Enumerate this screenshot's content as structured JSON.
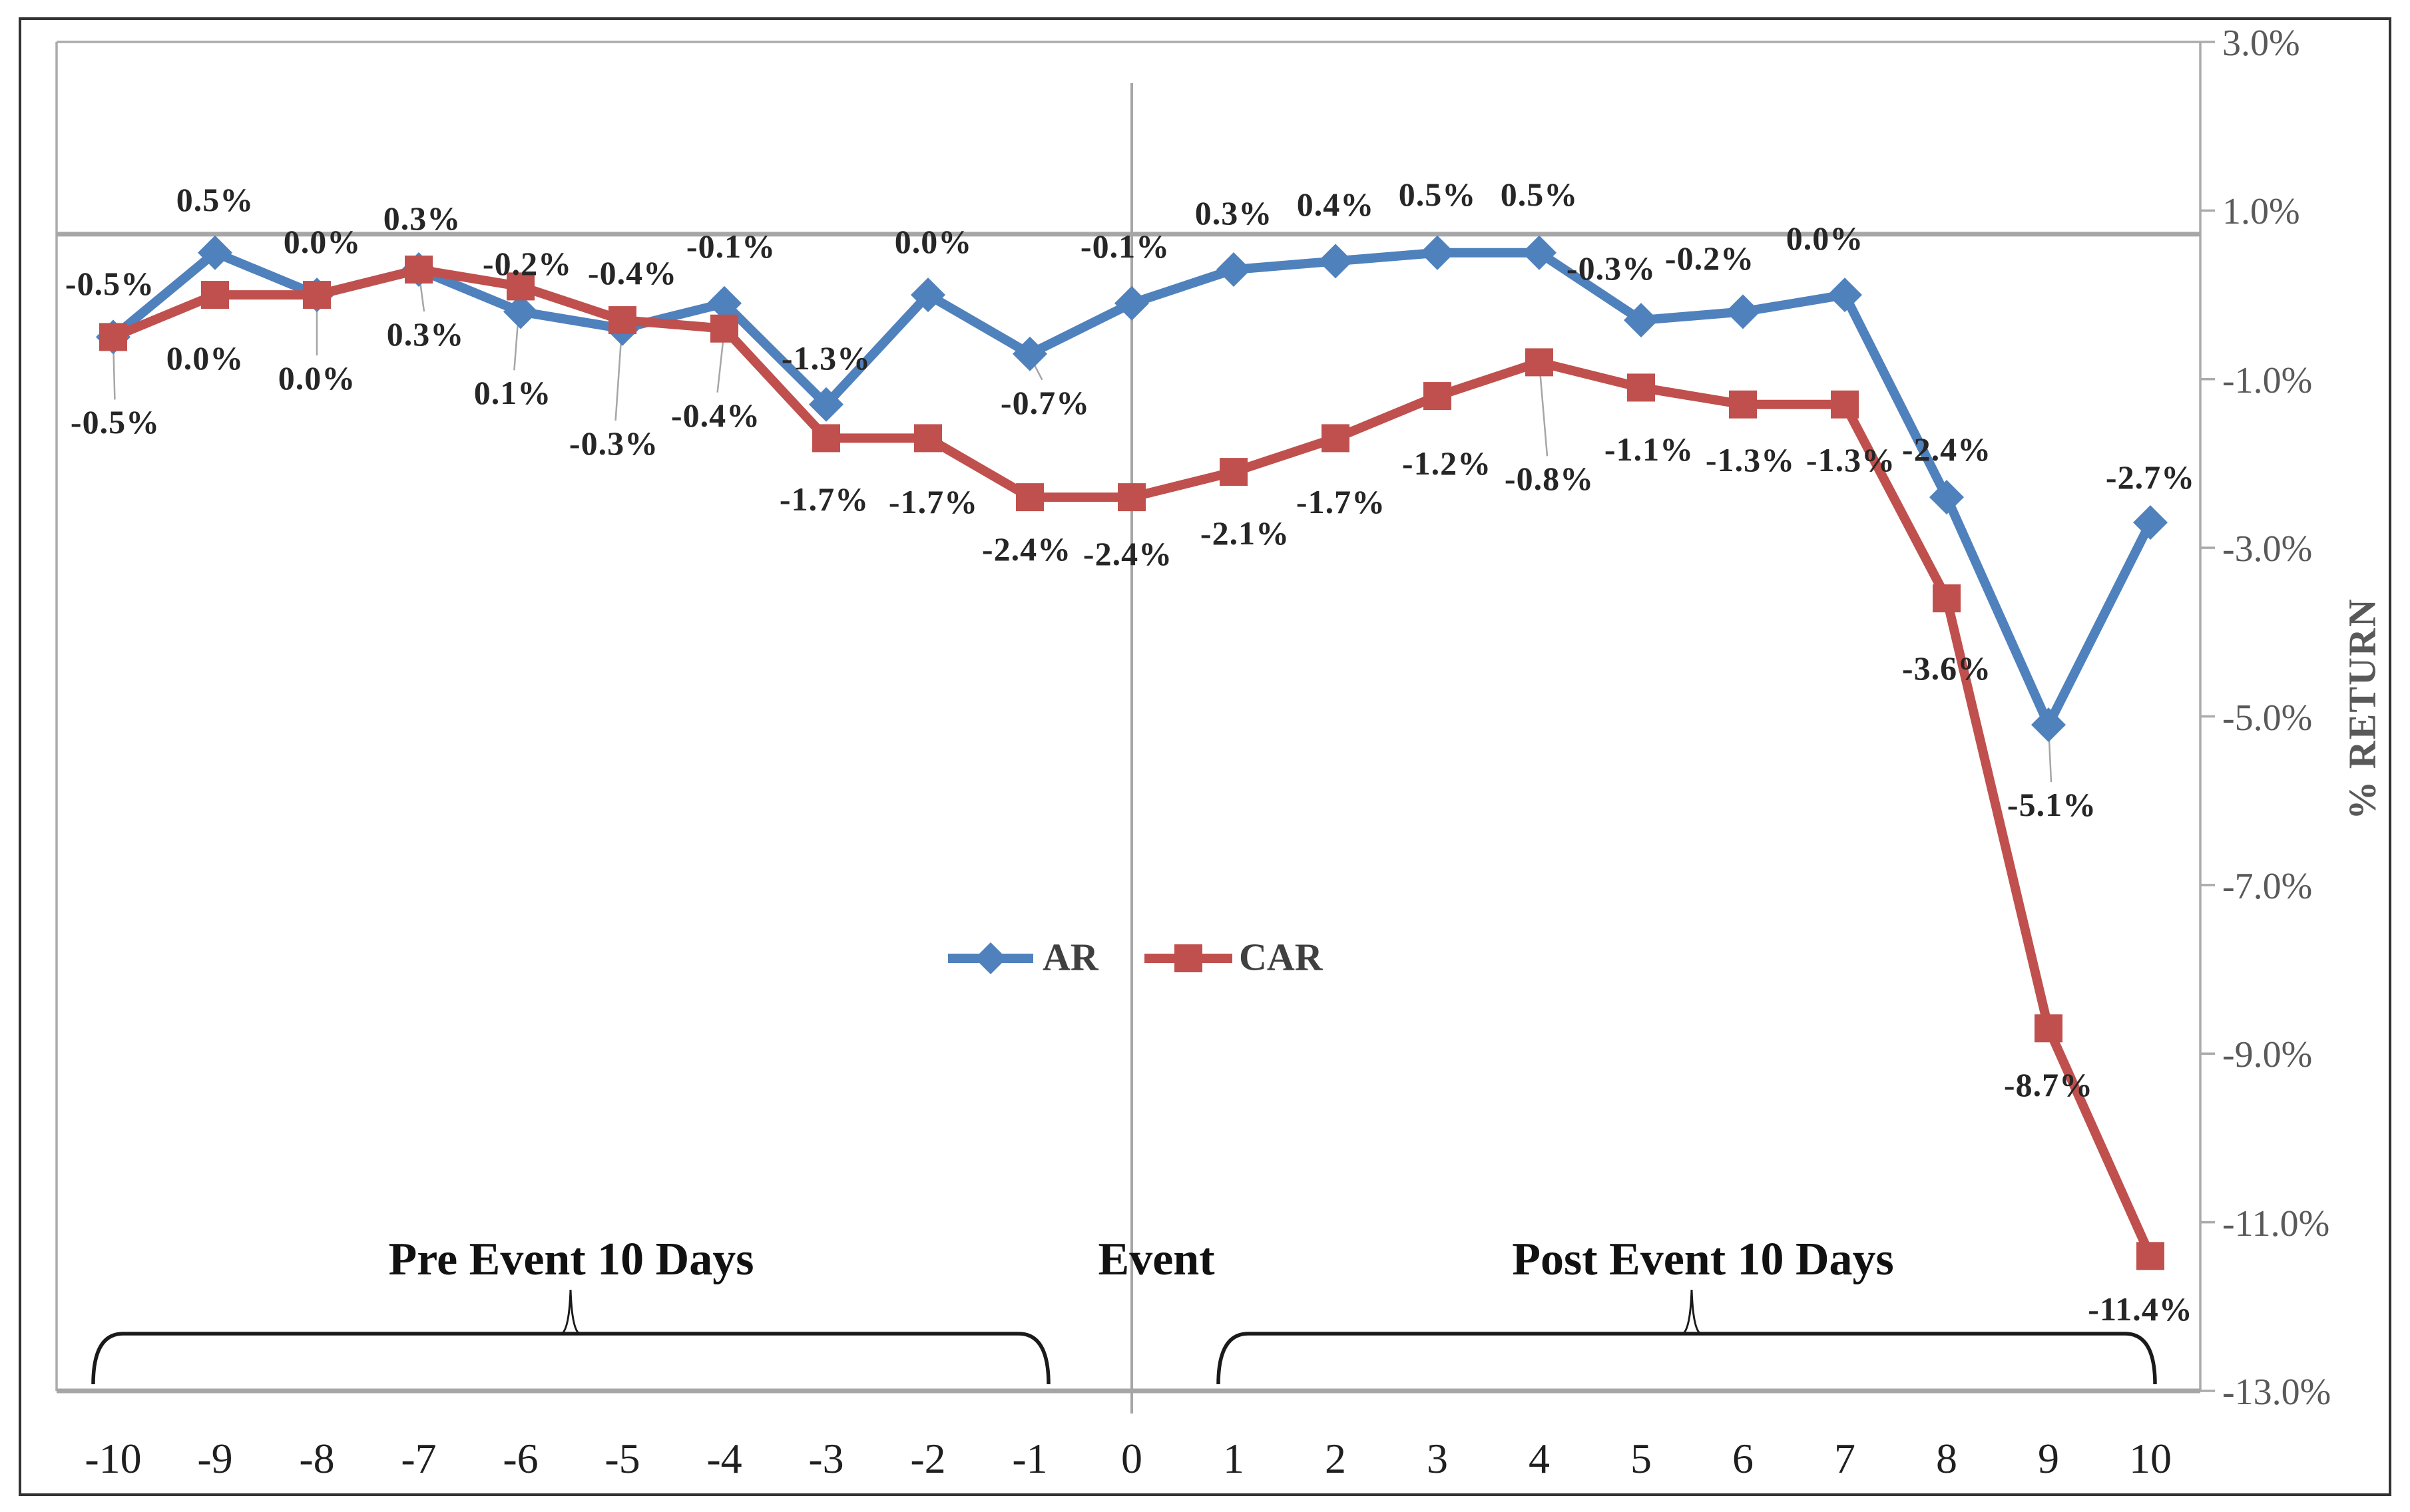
{
  "chart_data": {
    "type": "line",
    "title": "",
    "xlabel": "",
    "ylabel": "% RETURN",
    "x": [
      -10,
      -9,
      -8,
      -7,
      -6,
      -5,
      -4,
      -3,
      -2,
      -1,
      0,
      1,
      2,
      3,
      4,
      5,
      6,
      7,
      8,
      9,
      10
    ],
    "x_tick_labels": [
      "-10",
      "-9",
      "-8",
      "-7",
      "-6",
      "-5",
      "-4",
      "-3",
      "-2",
      "-1",
      "0",
      "1",
      "2",
      "3",
      "4",
      "5",
      "6",
      "7",
      "8",
      "9",
      "10"
    ],
    "y_tick_labels": [
      "3.0%",
      "1.0%",
      "-1.0%",
      "-3.0%",
      "-5.0%",
      "-7.0%",
      "-9.0%",
      "-11.0%",
      "-13.0%"
    ],
    "y_tick_values": [
      3,
      1,
      -1,
      -3,
      -5,
      -7,
      -9,
      -11,
      -13
    ],
    "ylim": [
      -13,
      3
    ],
    "grid": "off",
    "legend_position": "center-middle",
    "series": [
      {
        "name": "AR",
        "color": "#4F81BD",
        "marker": "diamond",
        "values": [
          -0.5,
          0.5,
          0.0,
          0.3,
          -0.2,
          -0.4,
          -0.1,
          -1.3,
          0.0,
          -0.7,
          -0.1,
          0.3,
          0.4,
          0.5,
          0.5,
          -0.3,
          -0.2,
          0.0,
          -2.4,
          -5.1,
          -2.7
        ],
        "data_labels": [
          "-0.5%",
          "0.5%",
          "0.0%",
          "0.3%",
          "-0.2%",
          "-0.4%",
          "-0.1%",
          "-1.3%",
          "0.0%",
          "-0.7%",
          "-0.1%",
          "0.3%",
          "0.4%",
          "0.5%",
          "0.5%",
          "-0.3%",
          "-0.2%",
          "0.0%",
          "-2.4%",
          "-5.1%",
          "-2.7%"
        ]
      },
      {
        "name": "CAR",
        "color": "#C0504D",
        "marker": "square",
        "values": [
          -0.5,
          0.0,
          0.0,
          0.3,
          0.1,
          -0.3,
          -0.4,
          -1.7,
          -1.7,
          -2.4,
          -2.4,
          -2.1,
          -1.7,
          -1.2,
          -0.8,
          -1.1,
          -1.3,
          -1.3,
          -3.6,
          -8.7,
          -11.4
        ],
        "data_labels": [
          "-0.5%",
          "0.0%",
          "0.0%",
          "0.3%",
          "0.1%",
          "-0.3%",
          "-0.4%",
          "-1.7%",
          "-1.7%",
          "-2.4%",
          "-2.4%",
          "-2.1%",
          "-1.7%",
          "-1.2%",
          "-0.8%",
          "-1.1%",
          "-1.3%",
          "-1.3%",
          "-3.6%",
          "-8.7%",
          "-11.4%"
        ]
      }
    ],
    "annotations": {
      "pre": "Pre Event 10 Days",
      "event": "Event",
      "post": "Post Event 10 Days"
    },
    "reference_lines": {
      "horizontal_value_pct": 0.72,
      "vertical_at_x": 0
    },
    "axis_color": "#A6A6A6"
  }
}
